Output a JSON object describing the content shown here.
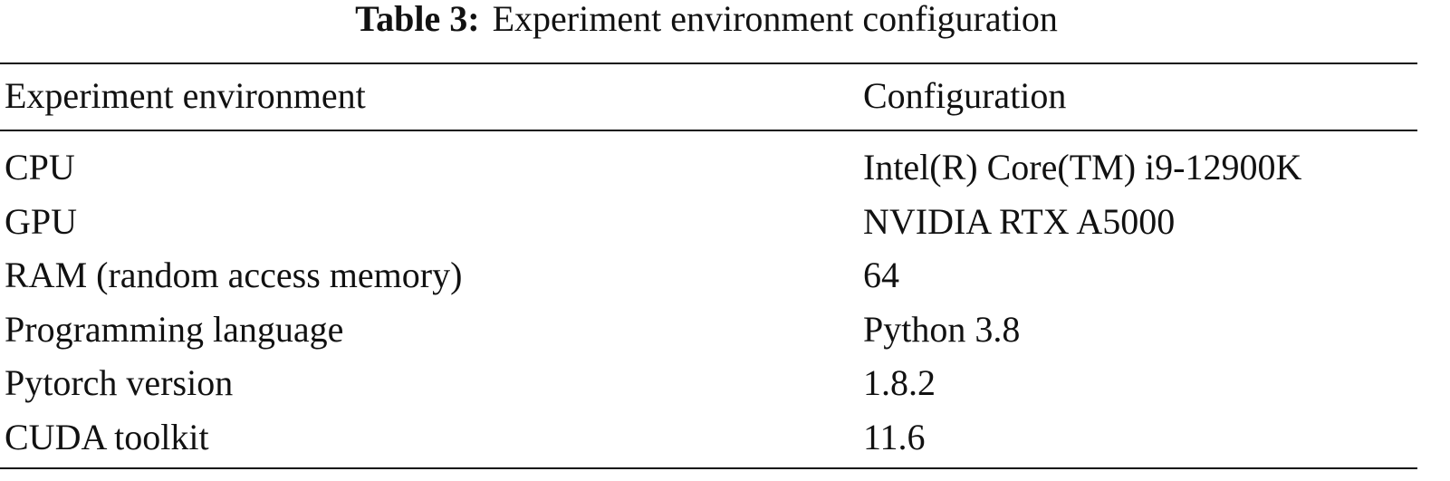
{
  "caption": {
    "label": "Table 3:",
    "text": "Experiment environment configuration"
  },
  "table": {
    "header": [
      "Experiment environment",
      "Configuration"
    ],
    "rows": [
      [
        "CPU",
        "Intel(R) Core(TM) i9-12900K"
      ],
      [
        "GPU",
        "NVIDIA RTX A5000"
      ],
      [
        "RAM (random access memory)",
        "64"
      ],
      [
        "Programming language",
        "Python 3.8"
      ],
      [
        "Pytorch version",
        "1.8.2"
      ],
      [
        "CUDA toolkit",
        "11.6"
      ]
    ]
  }
}
